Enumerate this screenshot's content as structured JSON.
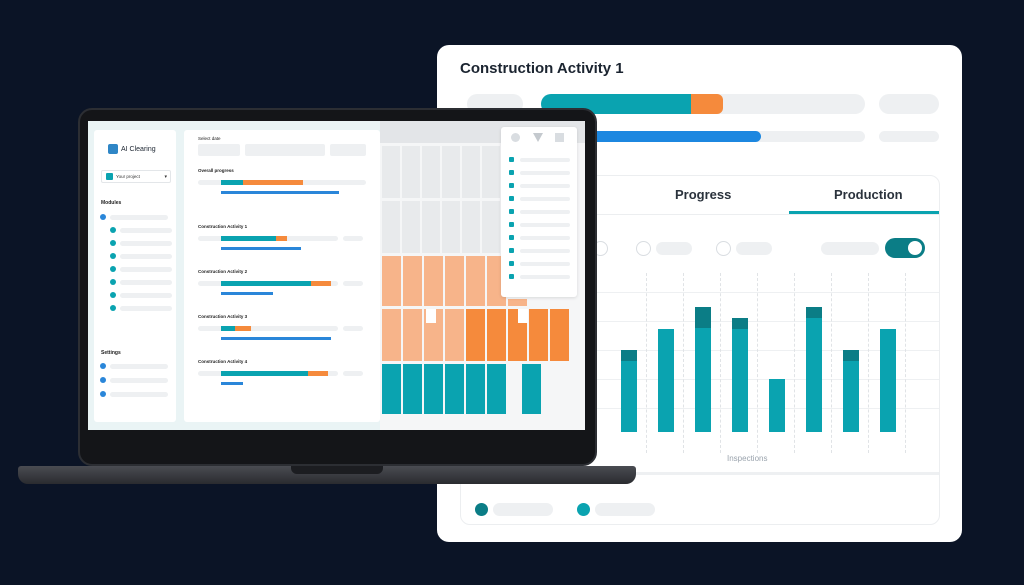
{
  "card": {
    "title": "Construction Activity 1",
    "tabs": [
      {
        "label": "Progress",
        "active": false
      },
      {
        "label": "Production",
        "active": true
      }
    ],
    "x_axis_label": "Inspections",
    "toggle_on": true
  },
  "laptop": {
    "app_name": "AI Clearing",
    "project_selector": "Your project",
    "sidebar": {
      "modules_label": "Modules",
      "settings_label": "Settings"
    },
    "main": {
      "select_date_label": "Select date",
      "overall_label": "Overall progress",
      "activities": [
        {
          "label": "Construction Activity 1"
        },
        {
          "label": "Construction Activity 2"
        },
        {
          "label": "Construction Activity 3"
        },
        {
          "label": "Construction Activity 4"
        }
      ]
    }
  },
  "colors": {
    "teal": "#0aa3b0",
    "dark_teal": "#0b7d86",
    "orange": "#f58a3c",
    "blue": "#2a86d9",
    "background": "#0b1426"
  },
  "icons": [
    "home-icon",
    "chevron-down-icon",
    "filter-icon",
    "search-icon"
  ]
}
